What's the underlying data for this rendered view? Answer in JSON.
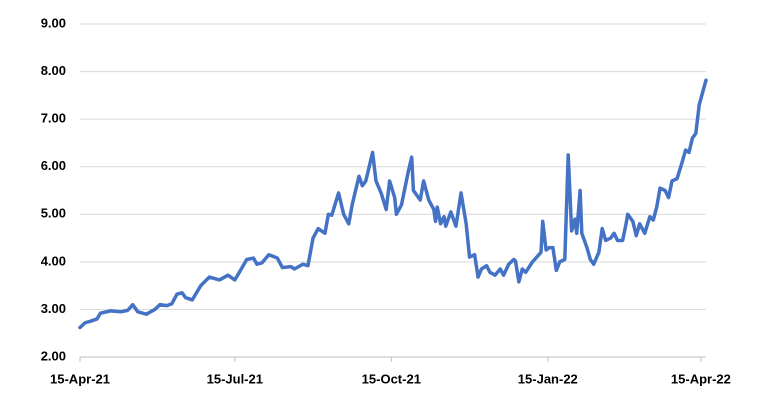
{
  "chart_data": {
    "type": "line",
    "color": "#4472c4",
    "grid": true,
    "ylim": [
      2,
      9
    ],
    "yticks": [
      {
        "value": 2,
        "label": "2.00"
      },
      {
        "value": 3,
        "label": "3.00"
      },
      {
        "value": 4,
        "label": "4.00"
      },
      {
        "value": 5,
        "label": "5.00"
      },
      {
        "value": 6,
        "label": "6.00"
      },
      {
        "value": 7,
        "label": "7.00"
      },
      {
        "value": 8,
        "label": "8.00"
      },
      {
        "value": 9,
        "label": "9.00"
      }
    ],
    "xlim": [
      "2021-04-15",
      "2022-04-18"
    ],
    "xticks": [
      {
        "value": "2021-04-15",
        "label": "15-Apr-21"
      },
      {
        "value": "2021-07-15",
        "label": "15-Jul-21"
      },
      {
        "value": "2021-10-15",
        "label": "15-Oct-21"
      },
      {
        "value": "2022-01-15",
        "label": "15-Jan-22"
      },
      {
        "value": "2022-04-15",
        "label": "15-Apr-22"
      }
    ],
    "x": [
      "2021-04-15",
      "2021-04-18",
      "2021-04-21",
      "2021-04-25",
      "2021-04-27",
      "2021-05-03",
      "2021-05-09",
      "2021-05-13",
      "2021-05-16",
      "2021-05-19",
      "2021-05-24",
      "2021-05-29",
      "2021-06-01",
      "2021-06-05",
      "2021-06-08",
      "2021-06-11",
      "2021-06-14",
      "2021-06-16",
      "2021-06-20",
      "2021-06-25",
      "2021-06-30",
      "2021-07-06",
      "2021-07-11",
      "2021-07-15",
      "2021-07-18",
      "2021-07-22",
      "2021-07-26",
      "2021-07-28",
      "2021-07-31",
      "2021-08-04",
      "2021-08-09",
      "2021-08-12",
      "2021-08-17",
      "2021-08-19",
      "2021-08-24",
      "2021-08-27",
      "2021-08-30",
      "2021-09-02",
      "2021-09-06",
      "2021-09-08",
      "2021-09-10",
      "2021-09-14",
      "2021-09-17",
      "2021-09-20",
      "2021-09-22",
      "2021-09-26",
      "2021-09-28",
      "2021-09-30",
      "2021-10-01",
      "2021-10-04",
      "2021-10-06",
      "2021-10-09",
      "2021-10-12",
      "2021-10-14",
      "2021-10-17",
      "2021-10-18",
      "2021-10-21",
      "2021-10-25",
      "2021-10-27",
      "2021-10-28",
      "2021-11-01",
      "2021-11-03",
      "2021-11-06",
      "2021-11-09",
      "2021-11-10",
      "2021-11-11",
      "2021-11-13",
      "2021-11-15",
      "2021-11-16",
      "2021-11-19",
      "2021-11-22",
      "2021-11-25",
      "2021-11-28",
      "2021-11-30",
      "2021-12-03",
      "2021-12-05",
      "2021-12-07",
      "2021-12-10",
      "2021-12-12",
      "2021-12-15",
      "2021-12-18",
      "2021-12-20",
      "2021-12-23",
      "2021-12-26",
      "2021-12-27",
      "2021-12-29",
      "2021-12-31",
      "2022-01-02",
      "2022-01-06",
      "2022-01-11",
      "2022-01-12",
      "2022-01-14",
      "2022-01-16",
      "2022-01-18",
      "2022-01-20",
      "2022-01-22",
      "2022-01-25",
      "2022-01-27",
      "2022-01-29",
      "2022-01-31",
      "2022-02-01",
      "2022-02-03",
      "2022-02-04",
      "2022-02-07",
      "2022-02-09",
      "2022-02-11",
      "2022-02-14",
      "2022-02-16",
      "2022-02-18",
      "2022-02-21",
      "2022-02-23",
      "2022-02-25",
      "2022-02-28",
      "2022-03-02",
      "2022-03-03",
      "2022-03-06",
      "2022-03-08",
      "2022-03-10",
      "2022-03-13",
      "2022-03-16",
      "2022-03-18",
      "2022-03-20",
      "2022-03-22",
      "2022-03-25",
      "2022-03-27",
      "2022-03-29",
      "2022-04-01",
      "2022-04-04",
      "2022-04-06",
      "2022-04-08",
      "2022-04-10",
      "2022-04-12",
      "2022-04-14",
      "2022-04-18"
    ],
    "values": [
      2.62,
      2.72,
      2.75,
      2.8,
      2.92,
      2.97,
      2.95,
      2.98,
      3.1,
      2.95,
      2.9,
      3.0,
      3.1,
      3.08,
      3.12,
      3.32,
      3.35,
      3.25,
      3.2,
      3.5,
      3.68,
      3.62,
      3.72,
      3.62,
      3.8,
      4.05,
      4.08,
      3.95,
      3.98,
      4.15,
      4.08,
      3.88,
      3.9,
      3.85,
      3.95,
      3.92,
      4.5,
      4.7,
      4.6,
      5.0,
      4.98,
      5.45,
      5.0,
      4.8,
      5.2,
      5.8,
      5.6,
      5.7,
      5.85,
      6.3,
      5.7,
      5.45,
      5.1,
      5.7,
      5.35,
      5.0,
      5.2,
      5.9,
      6.2,
      5.5,
      5.3,
      5.7,
      5.3,
      5.1,
      4.85,
      5.15,
      4.8,
      4.95,
      4.75,
      5.05,
      4.75,
      5.45,
      4.8,
      4.1,
      4.15,
      3.68,
      3.85,
      3.92,
      3.78,
      3.72,
      3.85,
      3.72,
      3.95,
      4.05,
      4.02,
      3.58,
      3.85,
      3.78,
      4.0,
      4.2,
      4.85,
      4.25,
      4.3,
      4.3,
      3.82,
      4.0,
      4.05,
      6.25,
      4.65,
      4.9,
      4.6,
      5.5,
      4.6,
      4.3,
      4.05,
      3.95,
      4.2,
      4.7,
      4.45,
      4.5,
      4.6,
      4.45,
      4.45,
      4.8,
      5.0,
      4.85,
      4.55,
      4.8,
      4.6,
      4.95,
      4.88,
      5.15,
      5.55,
      5.5,
      5.35,
      5.7,
      5.75,
      6.1,
      6.35,
      6.3,
      6.6,
      6.7,
      7.3,
      7.82
    ]
  }
}
